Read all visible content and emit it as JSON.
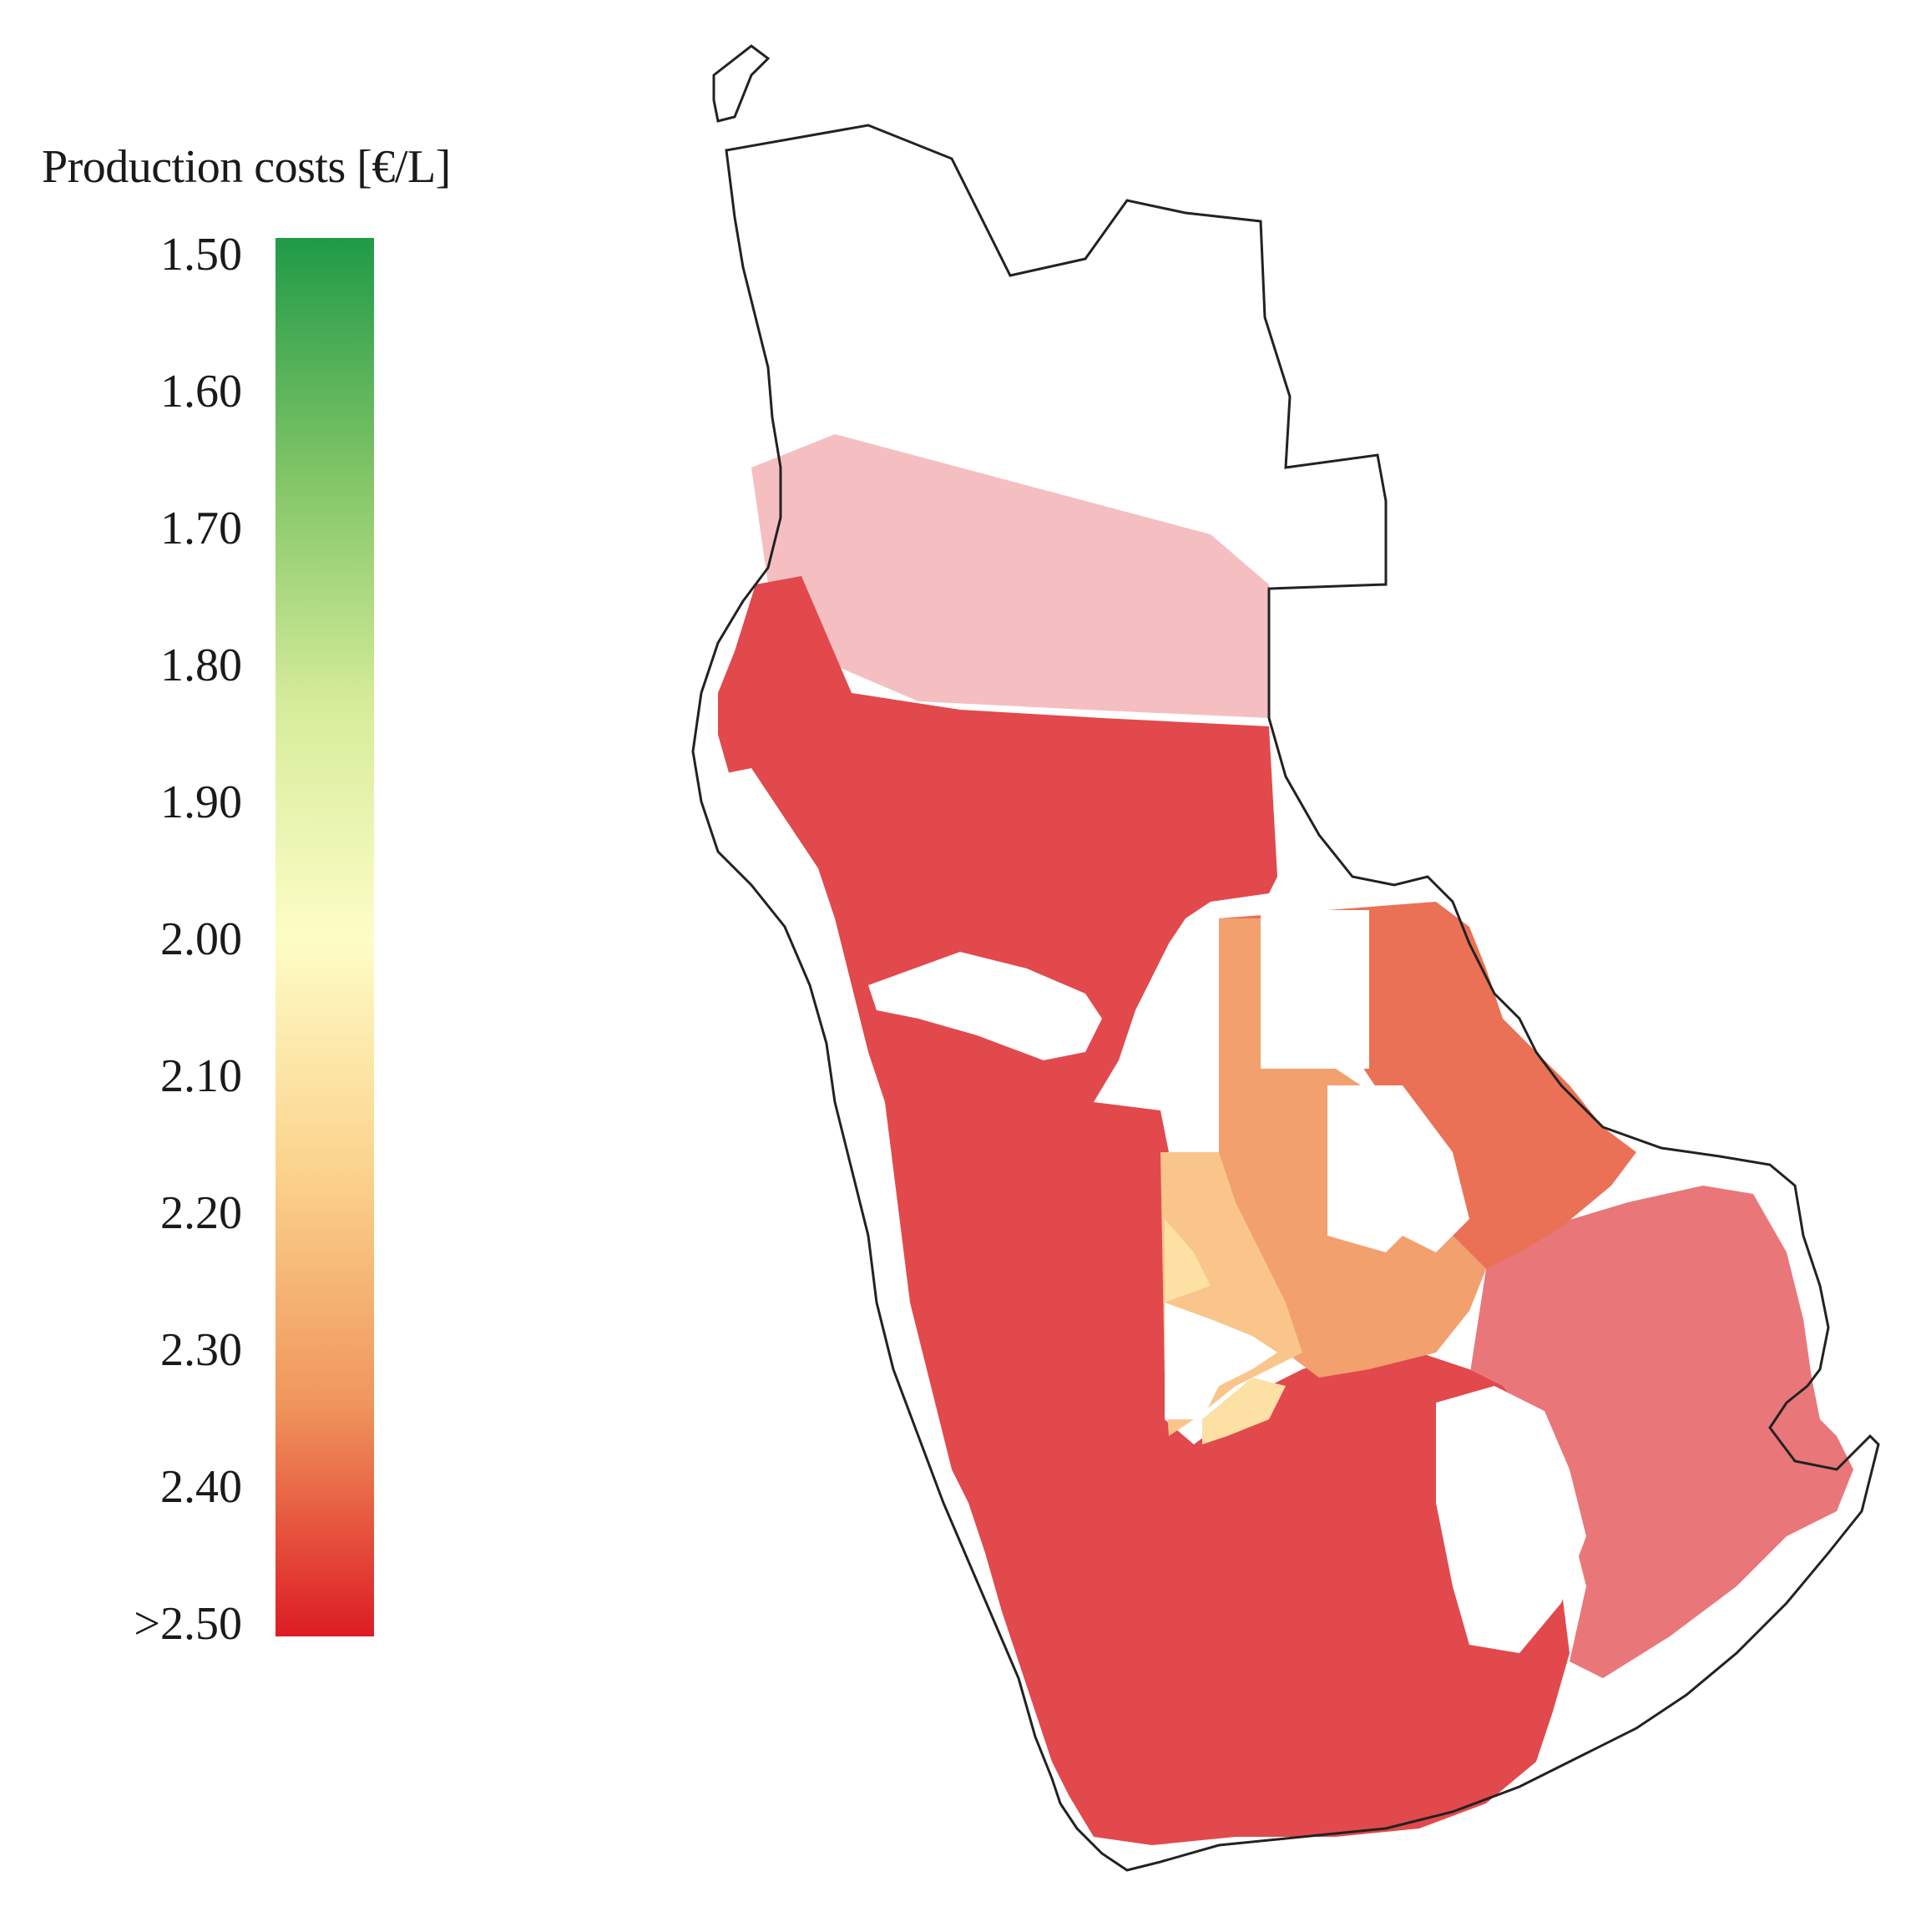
{
  "legend": {
    "title": "Production costs [€/L]",
    "ticks": [
      "1.50",
      "1.60",
      "1.70",
      "1.80",
      "1.90",
      "2.00",
      "2.10",
      "2.20",
      "2.30",
      "2.40",
      ">2.50"
    ],
    "colors": {
      "low": "#1f9a47",
      "mid_green": "#7fc466",
      "light_green": "#d6ec9a",
      "mid": "#fdfdc6",
      "light_orange": "#fbd38d",
      "orange": "#f0965c",
      "high": "#dd1c24"
    }
  },
  "map": {
    "outline_color": "#222222",
    "fill_colors": {
      "red": "#e2494c",
      "dark_orange": "#ea7155",
      "orange": "#f2a06e",
      "light_orange": "#f9c58b",
      "pale": "#fce0a4"
    }
  }
}
